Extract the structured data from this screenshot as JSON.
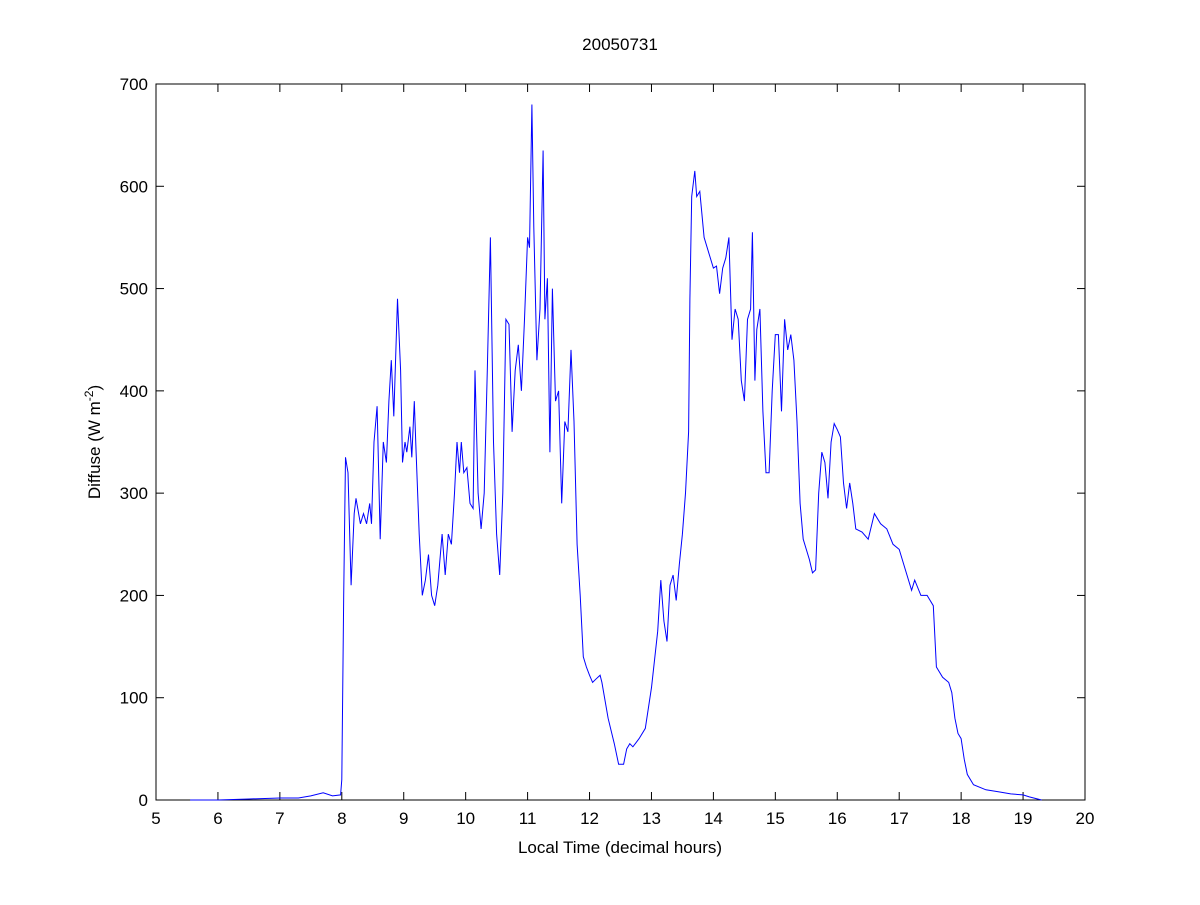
{
  "chart_data": {
    "type": "line",
    "title": "20050731",
    "xlabel": "Local Time (decimal hours)",
    "ylabel_main": "Diffuse (W m",
    "ylabel_sup": "-2",
    "ylabel_close": ")",
    "xlim": [
      5,
      20
    ],
    "ylim": [
      0,
      700
    ],
    "xticks": [
      "5",
      "6",
      "7",
      "8",
      "9",
      "10",
      "11",
      "12",
      "13",
      "14",
      "15",
      "16",
      "17",
      "18",
      "19",
      "20"
    ],
    "yticks": [
      "0",
      "100",
      "200",
      "300",
      "400",
      "500",
      "600",
      "700"
    ],
    "grid": false,
    "line_color": "#0000ff",
    "series": [
      {
        "name": "Diffuse",
        "points": [
          [
            5.55,
            0
          ],
          [
            6,
            0
          ],
          [
            6.5,
            1
          ],
          [
            7,
            2
          ],
          [
            7.3,
            2
          ],
          [
            7.5,
            4
          ],
          [
            7.7,
            7
          ],
          [
            7.85,
            4
          ],
          [
            7.98,
            5
          ],
          [
            8.0,
            20
          ],
          [
            8.03,
            200
          ],
          [
            8.06,
            335
          ],
          [
            8.1,
            320
          ],
          [
            8.15,
            210
          ],
          [
            8.2,
            280
          ],
          [
            8.23,
            295
          ],
          [
            8.3,
            270
          ],
          [
            8.35,
            280
          ],
          [
            8.4,
            270
          ],
          [
            8.45,
            290
          ],
          [
            8.48,
            270
          ],
          [
            8.52,
            350
          ],
          [
            8.57,
            385
          ],
          [
            8.62,
            255
          ],
          [
            8.67,
            350
          ],
          [
            8.72,
            330
          ],
          [
            8.76,
            390
          ],
          [
            8.8,
            430
          ],
          [
            8.84,
            375
          ],
          [
            8.9,
            490
          ],
          [
            8.95,
            420
          ],
          [
            8.98,
            330
          ],
          [
            9.02,
            350
          ],
          [
            9.05,
            340
          ],
          [
            9.1,
            365
          ],
          [
            9.13,
            335
          ],
          [
            9.17,
            390
          ],
          [
            9.2,
            340
          ],
          [
            9.25,
            260
          ],
          [
            9.3,
            200
          ],
          [
            9.35,
            215
          ],
          [
            9.4,
            240
          ],
          [
            9.45,
            200
          ],
          [
            9.5,
            190
          ],
          [
            9.55,
            210
          ],
          [
            9.62,
            260
          ],
          [
            9.67,
            220
          ],
          [
            9.72,
            260
          ],
          [
            9.77,
            250
          ],
          [
            9.82,
            300
          ],
          [
            9.86,
            350
          ],
          [
            9.9,
            320
          ],
          [
            9.93,
            350
          ],
          [
            9.97,
            320
          ],
          [
            10.02,
            325
          ],
          [
            10.07,
            290
          ],
          [
            10.12,
            285
          ],
          [
            10.15,
            420
          ],
          [
            10.2,
            300
          ],
          [
            10.25,
            265
          ],
          [
            10.3,
            300
          ],
          [
            10.35,
            420
          ],
          [
            10.4,
            550
          ],
          [
            10.45,
            350
          ],
          [
            10.5,
            260
          ],
          [
            10.55,
            220
          ],
          [
            10.6,
            300
          ],
          [
            10.65,
            470
          ],
          [
            10.7,
            465
          ],
          [
            10.75,
            360
          ],
          [
            10.8,
            420
          ],
          [
            10.85,
            445
          ],
          [
            10.9,
            400
          ],
          [
            10.95,
            470
          ],
          [
            11.0,
            550
          ],
          [
            11.03,
            540
          ],
          [
            11.07,
            680
          ],
          [
            11.1,
            560
          ],
          [
            11.15,
            430
          ],
          [
            11.2,
            480
          ],
          [
            11.25,
            635
          ],
          [
            11.28,
            470
          ],
          [
            11.32,
            510
          ],
          [
            11.36,
            340
          ],
          [
            11.4,
            500
          ],
          [
            11.45,
            390
          ],
          [
            11.5,
            400
          ],
          [
            11.55,
            290
          ],
          [
            11.6,
            370
          ],
          [
            11.65,
            360
          ],
          [
            11.7,
            440
          ],
          [
            11.75,
            370
          ],
          [
            11.8,
            250
          ],
          [
            11.85,
            200
          ],
          [
            11.9,
            140
          ],
          [
            11.95,
            130
          ],
          [
            12.0,
            122
          ],
          [
            12.05,
            115
          ],
          [
            12.1,
            118
          ],
          [
            12.17,
            122
          ],
          [
            12.2,
            115
          ],
          [
            12.3,
            80
          ],
          [
            12.4,
            55
          ],
          [
            12.47,
            35
          ],
          [
            12.55,
            35
          ],
          [
            12.6,
            50
          ],
          [
            12.65,
            55
          ],
          [
            12.7,
            52
          ],
          [
            12.8,
            60
          ],
          [
            12.9,
            70
          ],
          [
            13.0,
            110
          ],
          [
            13.1,
            165
          ],
          [
            13.15,
            215
          ],
          [
            13.2,
            175
          ],
          [
            13.25,
            155
          ],
          [
            13.3,
            210
          ],
          [
            13.35,
            220
          ],
          [
            13.4,
            195
          ],
          [
            13.45,
            230
          ],
          [
            13.5,
            260
          ],
          [
            13.55,
            300
          ],
          [
            13.6,
            360
          ],
          [
            13.62,
            490
          ],
          [
            13.65,
            590
          ],
          [
            13.7,
            615
          ],
          [
            13.73,
            590
          ],
          [
            13.78,
            595
          ],
          [
            13.85,
            550
          ],
          [
            13.95,
            530
          ],
          [
            14.0,
            520
          ],
          [
            14.05,
            522
          ],
          [
            14.1,
            495
          ],
          [
            14.15,
            520
          ],
          [
            14.2,
            530
          ],
          [
            14.25,
            550
          ],
          [
            14.3,
            450
          ],
          [
            14.35,
            480
          ],
          [
            14.4,
            470
          ],
          [
            14.45,
            410
          ],
          [
            14.5,
            390
          ],
          [
            14.55,
            470
          ],
          [
            14.6,
            480
          ],
          [
            14.63,
            555
          ],
          [
            14.67,
            410
          ],
          [
            14.7,
            460
          ],
          [
            14.75,
            480
          ],
          [
            14.8,
            380
          ],
          [
            14.85,
            320
          ],
          [
            14.9,
            320
          ],
          [
            14.95,
            400
          ],
          [
            15.0,
            455
          ],
          [
            15.05,
            455
          ],
          [
            15.1,
            380
          ],
          [
            15.15,
            470
          ],
          [
            15.2,
            440
          ],
          [
            15.25,
            455
          ],
          [
            15.3,
            430
          ],
          [
            15.35,
            370
          ],
          [
            15.4,
            290
          ],
          [
            15.45,
            255
          ],
          [
            15.5,
            245
          ],
          [
            15.55,
            235
          ],
          [
            15.6,
            222
          ],
          [
            15.65,
            225
          ],
          [
            15.7,
            300
          ],
          [
            15.75,
            340
          ],
          [
            15.8,
            330
          ],
          [
            15.85,
            295
          ],
          [
            15.9,
            350
          ],
          [
            15.95,
            368
          ],
          [
            16.0,
            362
          ],
          [
            16.05,
            355
          ],
          [
            16.1,
            310
          ],
          [
            16.15,
            285
          ],
          [
            16.2,
            310
          ],
          [
            16.25,
            290
          ],
          [
            16.3,
            265
          ],
          [
            16.4,
            262
          ],
          [
            16.5,
            255
          ],
          [
            16.6,
            280
          ],
          [
            16.7,
            270
          ],
          [
            16.8,
            265
          ],
          [
            16.9,
            250
          ],
          [
            17.0,
            245
          ],
          [
            17.1,
            225
          ],
          [
            17.2,
            205
          ],
          [
            17.25,
            215
          ],
          [
            17.35,
            200
          ],
          [
            17.45,
            200
          ],
          [
            17.55,
            190
          ],
          [
            17.6,
            130
          ],
          [
            17.7,
            120
          ],
          [
            17.8,
            115
          ],
          [
            17.85,
            105
          ],
          [
            17.9,
            80
          ],
          [
            17.95,
            65
          ],
          [
            18.0,
            60
          ],
          [
            18.05,
            40
          ],
          [
            18.1,
            25
          ],
          [
            18.2,
            15
          ],
          [
            18.4,
            10
          ],
          [
            18.6,
            8
          ],
          [
            18.8,
            6
          ],
          [
            19.0,
            5
          ],
          [
            19.1,
            3
          ],
          [
            19.3,
            0
          ]
        ]
      }
    ]
  }
}
